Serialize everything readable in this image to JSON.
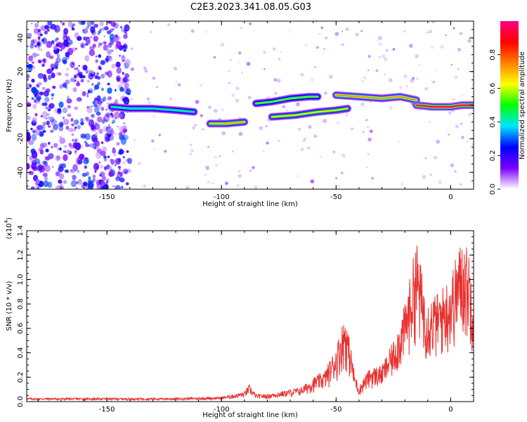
{
  "title": "C2E3.2023.341.08.05.G03",
  "chart_data": [
    {
      "type": "heatmap",
      "xlabel": "Height of straight line (km)",
      "ylabel": "Frequency (Hz)",
      "xlim": [
        -185,
        10
      ],
      "ylim": [
        -50,
        50
      ],
      "x_ticks": [
        -150,
        -100,
        -50,
        0
      ],
      "x_tick_labels": [
        "-150",
        "-100",
        "-50",
        "0"
      ],
      "y_ticks": [
        -40,
        -20,
        0,
        20,
        40
      ],
      "y_tick_labels": [
        "-40",
        "-20",
        "0",
        "20",
        "40"
      ],
      "colorbar": {
        "label": "Normalized spectral amplitude",
        "range": [
          0,
          1
        ],
        "ticks": [
          0.0,
          0.2,
          0.4,
          0.6,
          0.8
        ],
        "tick_labels": [
          "0.0",
          "0.2",
          "0.4",
          "0.6",
          "0.8"
        ],
        "colormap": [
          "#ffffff",
          "#7b00ff",
          "#0000ff",
          "#00e5ff",
          "#00ff00",
          "#ffff00",
          "#ff8000",
          "#ff0000",
          "#ff0080"
        ]
      },
      "noise_region": {
        "x_range": [
          -185,
          -140
        ],
        "amplitude": 0.25
      },
      "signal_tracks": [
        {
          "x": [
            -148,
            -140,
            -130,
            -120,
            -112
          ],
          "y": [
            -1,
            -2,
            -2,
            -3,
            -4
          ],
          "peak": 0.45
        },
        {
          "x": [
            -105,
            -98,
            -90
          ],
          "y": [
            -11,
            -11,
            -10
          ],
          "peak": 0.7
        },
        {
          "x": [
            -85,
            -78,
            -70,
            -62,
            -58
          ],
          "y": [
            1,
            2,
            4,
            5,
            5
          ],
          "peak": 0.55
        },
        {
          "x": [
            -78,
            -68,
            -58,
            -50,
            -45
          ],
          "y": [
            -7,
            -6,
            -4,
            -3,
            -2
          ],
          "peak": 0.65
        },
        {
          "x": [
            -50,
            -40,
            -30,
            -22,
            -15
          ],
          "y": [
            6,
            5,
            4,
            5,
            3
          ],
          "peak": 0.75
        },
        {
          "x": [
            -15,
            -8,
            0,
            5,
            10
          ],
          "y": [
            0,
            -1,
            -1,
            0,
            0
          ],
          "peak": 0.95
        }
      ]
    },
    {
      "type": "line",
      "xlabel": "Height of straight line (km)",
      "ylabel": "SNR (10 * v/v)",
      "y_scale_label": "(x10",
      "y_scale_exponent": "4",
      "xlim": [
        -185,
        10
      ],
      "ylim": [
        0,
        1.4
      ],
      "x_ticks": [
        -150,
        -100,
        -50,
        0
      ],
      "x_tick_labels": [
        "-150",
        "-100",
        "-50",
        "0"
      ],
      "y_ticks": [
        0.0,
        0.2,
        0.4,
        0.6,
        0.8,
        1.0,
        1.2,
        1.4
      ],
      "y_tick_labels": [
        "0.0",
        "0.2",
        "0.4",
        "0.6",
        "0.8",
        "1.0",
        "1.2",
        "1.4"
      ],
      "line_color": "#e8312f",
      "envelope_x": [
        -185,
        -160,
        -140,
        -120,
        -100,
        -90,
        -88,
        -85,
        -80,
        -75,
        -70,
        -65,
        -60,
        -55,
        -50,
        -48,
        -46,
        -44,
        -42,
        -40,
        -38,
        -35,
        -30,
        -25,
        -20,
        -17,
        -15,
        -12,
        -10,
        -5,
        0,
        5,
        8,
        10
      ],
      "envelope_y": [
        0.03,
        0.03,
        0.03,
        0.03,
        0.04,
        0.08,
        0.14,
        0.06,
        0.06,
        0.08,
        0.1,
        0.12,
        0.2,
        0.25,
        0.45,
        0.6,
        0.72,
        0.5,
        0.25,
        0.12,
        0.2,
        0.28,
        0.3,
        0.5,
        0.8,
        1.1,
        1.35,
        1.0,
        0.85,
        0.9,
        1.05,
        1.35,
        1.25,
        1.0
      ]
    }
  ]
}
